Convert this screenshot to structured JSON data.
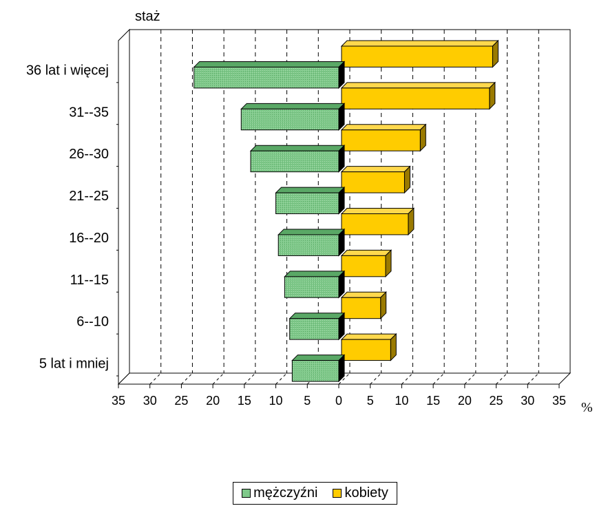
{
  "chart_data": {
    "type": "bar",
    "orientation": "horizontal",
    "ylabel": "staż",
    "unit_label": "%",
    "categories": [
      "36 lat i więcej",
      "31--35",
      "26--30",
      "21--25",
      "16--20",
      "11--15",
      "6--10",
      "5 lat i mniej"
    ],
    "series": [
      {
        "name": "mężczyźni",
        "values": [
          23,
          15.5,
          14,
          10,
          9.6,
          8.6,
          7.8,
          7.4
        ],
        "color": "#7fc98a",
        "side": "left"
      },
      {
        "name": "kobiety",
        "values": [
          24,
          23.5,
          12.5,
          10,
          10.6,
          7,
          6.2,
          7.8
        ],
        "color": "#ffcc00",
        "side": "right"
      }
    ],
    "x_tick_labels": [
      "35",
      "30",
      "25",
      "20",
      "15",
      "10",
      "5",
      "0",
      "5",
      "10",
      "15",
      "20",
      "25",
      "30",
      "35"
    ],
    "xlim": [
      -35,
      35
    ],
    "grid": "vertical dashed",
    "legend_position": "bottom",
    "style": "3d"
  }
}
